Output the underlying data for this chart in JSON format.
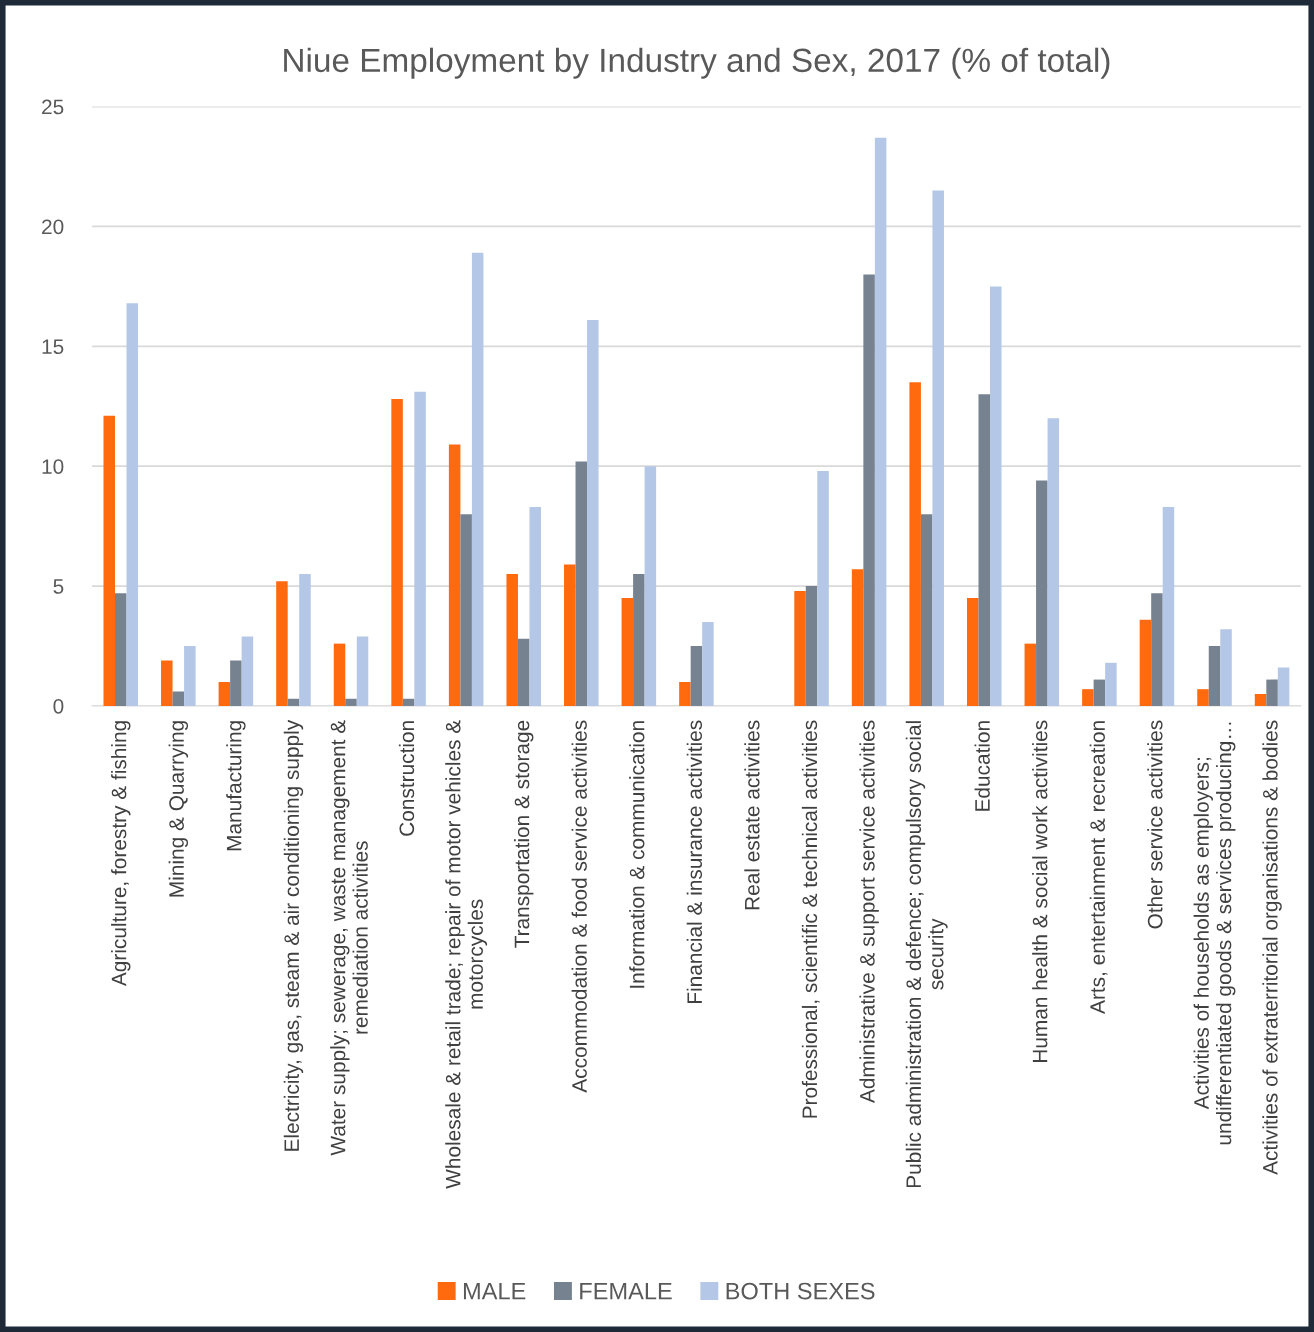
{
  "chart_data": {
    "type": "bar",
    "title": "Niue Employment by Industry and Sex, 2017 (% of total)",
    "categories": [
      "Agriculture, forestry & fishing",
      "Mining & Quarrying",
      "Manufacturing",
      "Electricity, gas, steam & air conditioning supply",
      "Water supply; sewerage, waste management &\nremediation activities",
      "Construction",
      "Wholesale & retail trade; repair of motor vehicles &\nmotorcycles",
      "Transportation & storage",
      "Accommodation & food service activities",
      "Information & communication",
      "Financial & insurance activities",
      "Real estate activities",
      "Professional, scientific & technical activities",
      "Administrative & support service activities",
      "Public administration & defence; compulsory social\nsecurity",
      "Education",
      "Human health & social work activities",
      "Arts, entertainment & recreation",
      "Other service activities",
      "Activities of households as employers;\nundifferentiated goods & services producing…",
      "Activities of extraterritorial organisations & bodies"
    ],
    "series": [
      {
        "name": "MALE",
        "color": "#ff6a0e",
        "values": [
          12.1,
          1.9,
          1.0,
          5.2,
          2.6,
          12.8,
          10.9,
          5.5,
          5.9,
          4.5,
          1.0,
          0,
          4.8,
          5.7,
          13.5,
          4.5,
          2.6,
          0.7,
          3.6,
          0.7,
          0.5
        ]
      },
      {
        "name": "FEMALE",
        "color": "#768290",
        "values": [
          4.7,
          0.6,
          1.9,
          0.3,
          0.3,
          0.3,
          8.0,
          2.8,
          10.2,
          5.5,
          2.5,
          0,
          5.0,
          18.0,
          8.0,
          13.0,
          9.4,
          1.1,
          4.7,
          2.5,
          1.1
        ]
      },
      {
        "name": "BOTH SEXES",
        "color": "#b4c7e7",
        "values": [
          16.8,
          2.5,
          2.9,
          5.5,
          2.9,
          13.1,
          18.9,
          8.3,
          16.1,
          10.0,
          3.5,
          0,
          9.8,
          23.7,
          21.5,
          17.5,
          12.0,
          1.8,
          8.3,
          3.2,
          1.6
        ]
      }
    ],
    "ylim": [
      0,
      25
    ],
    "yticks": [
      0,
      5,
      10,
      15,
      20,
      25
    ],
    "grid": "y",
    "legend": "bottom"
  }
}
